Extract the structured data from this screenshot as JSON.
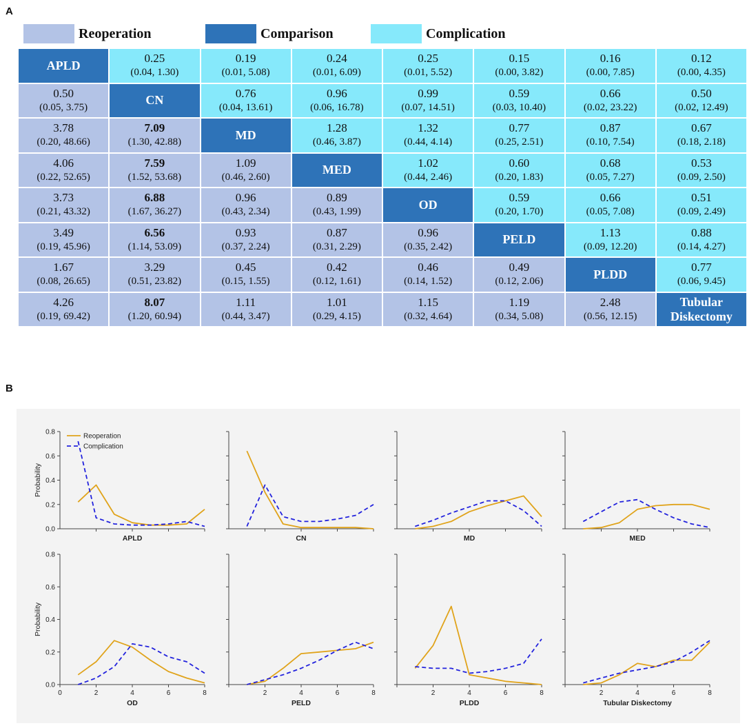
{
  "panel_labels": {
    "a": "A",
    "b": "B"
  },
  "colors": {
    "reoperation": "#b3c3e6",
    "comparison": "#2e73b8",
    "complication": "#86e9fb",
    "reoperation_line": "#e0a31a",
    "complication_line": "#2222dd",
    "panel_bg": "#f3f3f3"
  },
  "legend": {
    "reoperation": "Reoperation",
    "comparison": "Comparison",
    "complication": "Complication"
  },
  "matrix": {
    "treatments": [
      "APLD",
      "CN",
      "MD",
      "MED",
      "OD",
      "PELD",
      "PLDD",
      "Tubular Diskectomy"
    ],
    "diag_labels": [
      [
        "APLD"
      ],
      [
        "CN"
      ],
      [
        "MD"
      ],
      [
        "MED"
      ],
      [
        "OD"
      ],
      [
        "PELD"
      ],
      [
        "PLDD"
      ],
      [
        "Tubular",
        "Diskectomy"
      ]
    ],
    "rows": [
      [
        null,
        {
          "est": "0.25",
          "ci": "(0.04, 1.30)"
        },
        {
          "est": "0.19",
          "ci": "(0.01, 5.08)"
        },
        {
          "est": "0.24",
          "ci": "(0.01, 6.09)"
        },
        {
          "est": "0.25",
          "ci": "(0.01, 5.52)"
        },
        {
          "est": "0.15",
          "ci": "(0.00, 3.82)"
        },
        {
          "est": "0.16",
          "ci": "(0.00, 7.85)"
        },
        {
          "est": "0.12",
          "ci": "(0.00, 4.35)"
        }
      ],
      [
        {
          "est": "0.50",
          "ci": "(0.05, 3.75)"
        },
        null,
        {
          "est": "0.76",
          "ci": "(0.04, 13.61)"
        },
        {
          "est": "0.96",
          "ci": "(0.06, 16.78)"
        },
        {
          "est": "0.99",
          "ci": "(0.07, 14.51)"
        },
        {
          "est": "0.59",
          "ci": "(0.03, 10.40)"
        },
        {
          "est": "0.66",
          "ci": "(0.02, 23.22)"
        },
        {
          "est": "0.50",
          "ci": "(0.02, 12.49)"
        }
      ],
      [
        {
          "est": "3.78",
          "ci": "(0.20, 48.66)"
        },
        {
          "est": "7.09",
          "ci": "(1.30, 42.88)",
          "bold": true
        },
        null,
        {
          "est": "1.28",
          "ci": "(0.46, 3.87)"
        },
        {
          "est": "1.32",
          "ci": "(0.44, 4.14)"
        },
        {
          "est": "0.77",
          "ci": "(0.25, 2.51)"
        },
        {
          "est": "0.87",
          "ci": "(0.10, 7.54)"
        },
        {
          "est": "0.67",
          "ci": "(0.18, 2.18)"
        }
      ],
      [
        {
          "est": "4.06",
          "ci": "(0.22, 52.65)"
        },
        {
          "est": "7.59",
          "ci": "(1.52, 53.68)",
          "bold": true
        },
        {
          "est": "1.09",
          "ci": "(0.46, 2.60)"
        },
        null,
        {
          "est": "1.02",
          "ci": "(0.44, 2.46)"
        },
        {
          "est": "0.60",
          "ci": "(0.20, 1.83)"
        },
        {
          "est": "0.68",
          "ci": "(0.05, 7.27)"
        },
        {
          "est": "0.53",
          "ci": "(0.09, 2.50)"
        }
      ],
      [
        {
          "est": "3.73",
          "ci": "(0.21, 43.32)"
        },
        {
          "est": "6.88",
          "ci": "(1.67, 36.27)",
          "bold": true
        },
        {
          "est": "0.96",
          "ci": "(0.43, 2.34)"
        },
        {
          "est": "0.89",
          "ci": "(0.43, 1.99)"
        },
        null,
        {
          "est": "0.59",
          "ci": "(0.20, 1.70)"
        },
        {
          "est": "0.66",
          "ci": "(0.05, 7.08)"
        },
        {
          "est": "0.51",
          "ci": "(0.09, 2.49)"
        }
      ],
      [
        {
          "est": "3.49",
          "ci": "(0.19, 45.96)"
        },
        {
          "est": "6.56",
          "ci": "(1.14, 53.09)",
          "bold": true
        },
        {
          "est": "0.93",
          "ci": "(0.37, 2.24)"
        },
        {
          "est": "0.87",
          "ci": "(0.31, 2.29)"
        },
        {
          "est": "0.96",
          "ci": "(0.35, 2.42)"
        },
        null,
        {
          "est": "1.13",
          "ci": "(0.09, 12.20)"
        },
        {
          "est": "0.88",
          "ci": "(0.14, 4.27)"
        }
      ],
      [
        {
          "est": "1.67",
          "ci": "(0.08, 26.65)"
        },
        {
          "est": "3.29",
          "ci": "(0.51, 23.82)"
        },
        {
          "est": "0.45",
          "ci": "(0.15, 1.55)"
        },
        {
          "est": "0.42",
          "ci": "(0.12, 1.61)"
        },
        {
          "est": "0.46",
          "ci": "(0.14, 1.52)"
        },
        {
          "est": "0.49",
          "ci": "(0.12, 2.06)"
        },
        null,
        {
          "est": "0.77",
          "ci": "(0.06, 9.45)"
        }
      ],
      [
        {
          "est": "4.26",
          "ci": "(0.19, 69.42)"
        },
        {
          "est": "8.07",
          "ci": "(1.20, 60.94)",
          "bold": true
        },
        {
          "est": "1.11",
          "ci": "(0.44, 3.47)"
        },
        {
          "est": "1.01",
          "ci": "(0.29, 4.15)"
        },
        {
          "est": "1.15",
          "ci": "(0.32, 4.64)"
        },
        {
          "est": "1.19",
          "ci": "(0.34, 5.08)"
        },
        {
          "est": "2.48",
          "ci": "(0.56, 12.15)"
        },
        null
      ]
    ]
  },
  "chart_data": {
    "type": "line",
    "ylabel": "Probability",
    "ylim": [
      0,
      0.8
    ],
    "yticks": [
      "0.0",
      "0.2",
      "0.4",
      "0.6",
      "0.8"
    ],
    "xlim": [
      0,
      8
    ],
    "xticks": [
      "0",
      "2",
      "4",
      "6",
      "8"
    ],
    "x": [
      1,
      2,
      3,
      4,
      5,
      6,
      7,
      8
    ],
    "legend": [
      "Reoperation",
      "Complication"
    ],
    "panels": [
      {
        "xlabel": "APLD",
        "reoperation": [
          0.22,
          0.36,
          0.12,
          0.05,
          0.03,
          0.03,
          0.04,
          0.16
        ],
        "complication": [
          0.72,
          0.09,
          0.04,
          0.03,
          0.03,
          0.04,
          0.06,
          0.02
        ]
      },
      {
        "xlabel": "CN",
        "reoperation": [
          0.64,
          0.3,
          0.04,
          0.01,
          0.01,
          0.01,
          0.01,
          0.0
        ],
        "complication": [
          0.02,
          0.36,
          0.1,
          0.06,
          0.06,
          0.08,
          0.11,
          0.2
        ]
      },
      {
        "xlabel": "MD",
        "reoperation": [
          0.0,
          0.02,
          0.06,
          0.14,
          0.19,
          0.23,
          0.27,
          0.1
        ],
        "complication": [
          0.02,
          0.07,
          0.13,
          0.18,
          0.23,
          0.23,
          0.15,
          0.02
        ]
      },
      {
        "xlabel": "MED",
        "reoperation": [
          0.0,
          0.01,
          0.05,
          0.16,
          0.19,
          0.2,
          0.2,
          0.16
        ],
        "complication": [
          0.06,
          0.14,
          0.22,
          0.24,
          0.16,
          0.09,
          0.04,
          0.01
        ]
      },
      {
        "xlabel": "OD",
        "reoperation": [
          0.06,
          0.14,
          0.27,
          0.23,
          0.15,
          0.08,
          0.04,
          0.01
        ],
        "complication": [
          0.0,
          0.04,
          0.11,
          0.25,
          0.23,
          0.17,
          0.14,
          0.07
        ]
      },
      {
        "xlabel": "PELD",
        "reoperation": [
          0.0,
          0.02,
          0.1,
          0.19,
          0.2,
          0.21,
          0.22,
          0.26
        ],
        "complication": [
          0.0,
          0.03,
          0.06,
          0.1,
          0.15,
          0.21,
          0.26,
          0.22
        ]
      },
      {
        "xlabel": "PLDD",
        "reoperation": [
          0.1,
          0.24,
          0.48,
          0.06,
          0.04,
          0.02,
          0.01,
          0.0
        ],
        "complication": [
          0.11,
          0.1,
          0.1,
          0.07,
          0.08,
          0.1,
          0.13,
          0.28
        ]
      },
      {
        "xlabel": "Tubular Diskectomy",
        "reoperation": [
          0.0,
          0.01,
          0.06,
          0.13,
          0.11,
          0.15,
          0.15,
          0.26
        ],
        "complication": [
          0.01,
          0.04,
          0.07,
          0.09,
          0.11,
          0.14,
          0.2,
          0.27
        ]
      }
    ]
  }
}
